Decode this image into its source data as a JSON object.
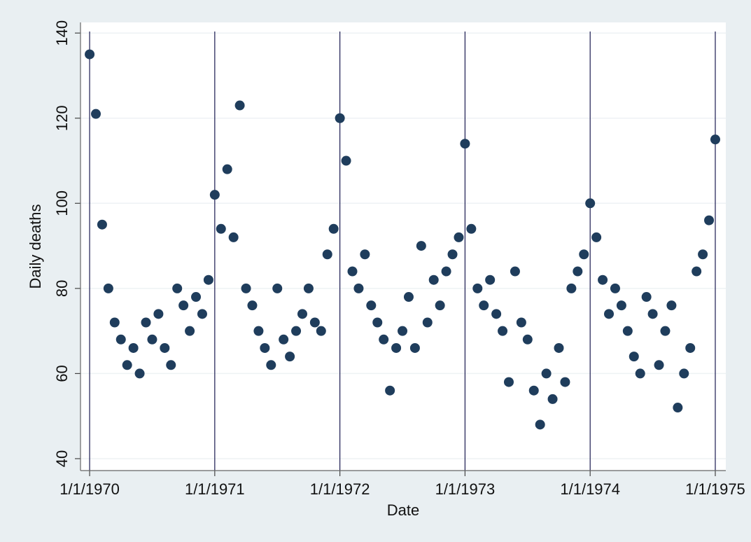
{
  "chart_data": {
    "type": "scatter",
    "x_label": "Date",
    "y_label": "Daily deaths",
    "color": "#1f3d5c",
    "x": [
      1970,
      1970.05,
      1970.1,
      1970.15,
      1970.2,
      1970.25,
      1970.3,
      1970.35,
      1970.4,
      1970.45,
      1970.5,
      1970.55,
      1970.6,
      1970.65,
      1970.7,
      1970.75,
      1970.8,
      1970.85,
      1970.9,
      1970.95,
      1971,
      1971.05,
      1971.1,
      1971.15,
      1971.2,
      1971.25,
      1971.3,
      1971.35,
      1971.4,
      1971.45,
      1971.5,
      1971.55,
      1971.6,
      1971.65,
      1971.7,
      1971.75,
      1971.8,
      1971.85,
      1971.9,
      1971.95,
      1972,
      1972.05,
      1972.1,
      1972.15,
      1972.2,
      1972.25,
      1972.3,
      1972.35,
      1972.4,
      1972.45,
      1972.5,
      1972.55,
      1972.6,
      1972.65,
      1972.7,
      1972.75,
      1972.8,
      1972.85,
      1972.9,
      1972.95,
      1973,
      1973.05,
      1973.1,
      1973.15,
      1973.2,
      1973.25,
      1973.3,
      1973.35,
      1973.4,
      1973.45,
      1973.5,
      1973.55,
      1973.6,
      1973.65,
      1973.7,
      1973.75,
      1973.8,
      1973.85,
      1973.9,
      1973.95,
      1974,
      1974.05,
      1974.1,
      1974.15,
      1974.2,
      1974.25,
      1974.3,
      1974.35,
      1974.4,
      1974.45,
      1974.5,
      1974.55,
      1974.6,
      1974.65,
      1974.7,
      1974.75,
      1974.8,
      1974.85,
      1974.9,
      1974.95,
      1975
    ],
    "y": [
      135,
      121,
      95,
      80,
      72,
      68,
      62,
      66,
      60,
      72,
      68,
      74,
      66,
      62,
      80,
      76,
      70,
      78,
      74,
      82,
      102,
      94,
      108,
      92,
      123,
      80,
      76,
      70,
      66,
      62,
      80,
      68,
      64,
      70,
      74,
      80,
      72,
      70,
      88,
      94,
      120,
      110,
      84,
      80,
      88,
      76,
      72,
      68,
      56,
      66,
      70,
      78,
      66,
      90,
      72,
      82,
      76,
      84,
      88,
      92,
      114,
      94,
      80,
      76,
      82,
      74,
      70,
      58,
      84,
      72,
      68,
      56,
      48,
      60,
      54,
      66,
      58,
      80,
      84,
      88,
      100,
      92,
      82,
      74,
      80,
      76,
      70,
      64,
      60,
      78,
      74,
      62,
      70,
      76,
      52,
      60,
      66,
      84,
      88,
      96,
      115
    ],
    "xlim": [
      1969.927,
      1975.084
    ],
    "xticks": [
      {
        "value": 1970,
        "label": "1/1/1970"
      },
      {
        "value": 1971,
        "label": "1/1/1971"
      },
      {
        "value": 1972,
        "label": "1/1/1972"
      },
      {
        "value": 1973,
        "label": "1/1/1973"
      },
      {
        "value": 1974,
        "label": "1/1/1974"
      },
      {
        "value": 1975,
        "label": "1/1/1975"
      }
    ],
    "ylim": [
      37.2,
      142.5
    ],
    "yticks": [
      40,
      60,
      80,
      100,
      120,
      140
    ],
    "grid": true
  }
}
